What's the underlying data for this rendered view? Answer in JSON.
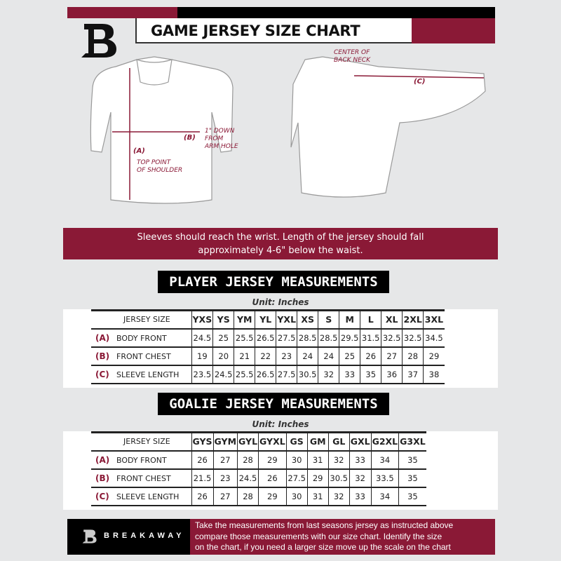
{
  "header": {
    "title": "GAME JERSEY SIZE CHART",
    "brand_color": "#8a1936"
  },
  "diagram": {
    "center_back_neck": [
      "CENTER OF",
      "BACK NECK"
    ],
    "label_a": "(A)",
    "label_b": "(B)",
    "label_c": "(C)",
    "arm_hole": [
      "1\" DOWN",
      "FROM",
      "ARM HOLE"
    ],
    "shoulder": [
      "TOP POINT",
      "OF SHOULDER"
    ]
  },
  "note": [
    "Sleeves should reach the wrist. Length of the jersey should fall",
    "approximately 4-6\" below the waist."
  ],
  "player": {
    "heading": "PLAYER JERSEY MEASUREMENTS",
    "unit": "Unit: Inches",
    "size_header": "JERSEY SIZE",
    "sizes": [
      "YXS",
      "YS",
      "YM",
      "YL",
      "YXL",
      "XS",
      "S",
      "M",
      "L",
      "XL",
      "2XL",
      "3XL"
    ],
    "rows": [
      {
        "letter": "(A)",
        "label": "BODY FRONT",
        "values": [
          "24.5",
          "25",
          "25.5",
          "26.5",
          "27.5",
          "28.5",
          "28.5",
          "29.5",
          "31.5",
          "32.5",
          "32.5",
          "34.5"
        ]
      },
      {
        "letter": "(B)",
        "label": "FRONT CHEST",
        "values": [
          "19",
          "20",
          "21",
          "22",
          "23",
          "24",
          "24",
          "25",
          "26",
          "27",
          "28",
          "29"
        ]
      },
      {
        "letter": "(C)",
        "label": "SLEEVE LENGTH",
        "values": [
          "23.5",
          "24.5",
          "25.5",
          "26.5",
          "27.5",
          "30.5",
          "32",
          "33",
          "35",
          "36",
          "37",
          "38"
        ]
      }
    ]
  },
  "goalie": {
    "heading": "GOALIE JERSEY MEASUREMENTS",
    "unit": "Unit: Inches",
    "size_header": "JERSEY SIZE",
    "sizes": [
      "GYS",
      "GYM",
      "GYL",
      "GYXL",
      "GS",
      "GM",
      "GL",
      "GXL",
      "G2XL",
      "G3XL"
    ],
    "rows": [
      {
        "letter": "(A)",
        "label": "BODY FRONT",
        "values": [
          "26",
          "27",
          "28",
          "29",
          "30",
          "31",
          "32",
          "33",
          "34",
          "35"
        ]
      },
      {
        "letter": "(B)",
        "label": "FRONT CHEST",
        "values": [
          "21.5",
          "23",
          "24.5",
          "26",
          "27.5",
          "29",
          "30.5",
          "32",
          "33.5",
          "35"
        ]
      },
      {
        "letter": "(C)",
        "label": "SLEEVE LENGTH",
        "values": [
          "26",
          "27",
          "28",
          "29",
          "30",
          "31",
          "32",
          "33",
          "34",
          "35"
        ]
      }
    ]
  },
  "footer": {
    "brand": "BREAKAWAY",
    "text": [
      "Take the measurements from last seasons jersey as instructed above",
      "compare those measurements  with our size chart. Identify the size",
      "on the chart, if you need a larger size move up the scale on the chart"
    ]
  }
}
